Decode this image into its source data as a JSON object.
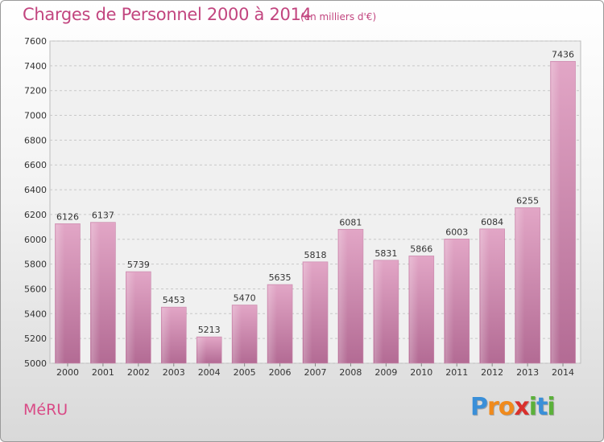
{
  "chart_data": {
    "type": "bar",
    "title": "Charges de Personnel 2000 à 2014",
    "subtitle": "(en milliers d'€)",
    "categories": [
      "2000",
      "2001",
      "2002",
      "2003",
      "2004",
      "2005",
      "2006",
      "2007",
      "2008",
      "2009",
      "2010",
      "2011",
      "2012",
      "2013",
      "2014"
    ],
    "values": [
      6126,
      6137,
      5739,
      5453,
      5213,
      5470,
      5635,
      5818,
      6081,
      5831,
      5866,
      6003,
      6084,
      6255,
      7436
    ],
    "ylim": [
      5000,
      7600
    ],
    "yticks": [
      5000,
      5200,
      5400,
      5600,
      5800,
      6000,
      6200,
      6400,
      6600,
      6800,
      7000,
      7200,
      7400,
      7600
    ],
    "grid": true,
    "bar_color": "#d98ab3"
  },
  "footer": {
    "commune": "MéRU",
    "logo_letters": [
      {
        "ch": "P",
        "color": "#3a8fd8"
      },
      {
        "ch": "r",
        "color": "#f08a1c"
      },
      {
        "ch": "o",
        "color": "#f08a1c"
      },
      {
        "ch": "x",
        "color": "#d9302c"
      },
      {
        "ch": "i",
        "color": "#5bb13a"
      },
      {
        "ch": "t",
        "color": "#3a8fd8"
      },
      {
        "ch": "i",
        "color": "#5bb13a"
      }
    ]
  }
}
